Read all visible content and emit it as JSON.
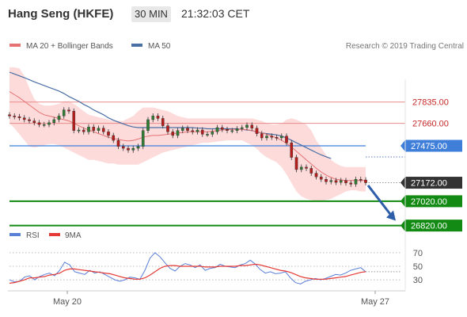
{
  "header": {
    "title": "Hang Seng (HKFE)",
    "timeframe": "30 MIN",
    "time": "21:32:03 CET"
  },
  "legend": {
    "bb_label": "MA 20 + Bollinger Bands",
    "ma50_label": "MA 50",
    "credit": "Research © 2019 Trading Central"
  },
  "colors": {
    "bb_fill": "#fdd5d5",
    "ma20": "#e57373",
    "ma50": "#4a6fa5",
    "resistance": "#e88a8a",
    "pivot": "#3f7fd9",
    "support": "#138a13",
    "current": "#333333",
    "rsi": "#5a7fd6",
    "rsi_ma": "#e53935",
    "arrow": "#2f5ea8"
  },
  "chart_data": [
    {
      "type": "candlestick",
      "title": "Hang Seng (HKFE)",
      "ylim": [
        26720,
        28230
      ],
      "x_ticks": [
        "May 20",
        "May 27"
      ],
      "levels": [
        {
          "label": "27835.00",
          "value": 27835,
          "kind": "resistance"
        },
        {
          "label": "27660.00",
          "value": 27660,
          "kind": "resistance"
        },
        {
          "label": "27475.00",
          "value": 27475,
          "kind": "pivot"
        },
        {
          "label": "27172.00",
          "value": 27172,
          "kind": "current"
        },
        {
          "label": "27020.00",
          "value": 27020,
          "kind": "support"
        },
        {
          "label": "26820.00",
          "value": 26820,
          "kind": "support"
        }
      ],
      "close": [
        27720,
        27715,
        27705,
        27690,
        27680,
        27665,
        27650,
        27650,
        27665,
        27690,
        27720,
        27770,
        27760,
        27600,
        27605,
        27590,
        27630,
        27600,
        27620,
        27590,
        27560,
        27520,
        27470,
        27455,
        27440,
        27455,
        27470,
        27600,
        27690,
        27720,
        27700,
        27640,
        27590,
        27560,
        27600,
        27620,
        27600,
        27590,
        27605,
        27570,
        27570,
        27590,
        27625,
        27610,
        27600,
        27600,
        27615,
        27625,
        27645,
        27620,
        27575,
        27540,
        27555,
        27545,
        27540,
        27555,
        27500,
        27380,
        27280,
        27300,
        27290,
        27250,
        27220,
        27200,
        27180,
        27190,
        27175,
        27190,
        27170,
        27160,
        27200,
        27195,
        27172
      ],
      "ma20": [
        27920,
        27895,
        27870,
        27840,
        27810,
        27780,
        27750,
        27730,
        27720,
        27710,
        27700,
        27690,
        27680,
        27660,
        27640,
        27620,
        27605,
        27590,
        27575,
        27560,
        27545,
        27535,
        27528,
        27520,
        27515,
        27520,
        27530,
        27545,
        27555,
        27560,
        27560,
        27565,
        27570,
        27575,
        27580,
        27585,
        27590,
        27590,
        27590,
        27590,
        27590,
        27595,
        27600,
        27605,
        27608,
        27610,
        27610,
        27610,
        27608,
        27600,
        27590,
        27580,
        27570,
        27555,
        27540,
        27520,
        27495,
        27465,
        27430,
        27395,
        27360,
        27325,
        27290,
        27260,
        27235,
        27215,
        27200,
        27195,
        27190,
        27190,
        27190,
        27190,
        27190
      ],
      "bb_upper": [
        28120,
        28120,
        28110,
        28050,
        27950,
        27860,
        27820,
        27805,
        27805,
        27810,
        27820,
        27840,
        27840,
        27820,
        27790,
        27760,
        27730,
        27720,
        27710,
        27700,
        27690,
        27680,
        27680,
        27680,
        27700,
        27720,
        27760,
        27790,
        27790,
        27790,
        27780,
        27770,
        27760,
        27740,
        27720,
        27710,
        27700,
        27700,
        27700,
        27700,
        27700,
        27700,
        27700,
        27700,
        27700,
        27700,
        27700,
        27700,
        27700,
        27700,
        27690,
        27680,
        27660,
        27650,
        27650,
        27660,
        27690,
        27700,
        27690,
        27670,
        27650,
        27600,
        27520,
        27460,
        27400,
        27360,
        27330,
        27310,
        27300,
        27300,
        27300,
        27300,
        27300
      ],
      "bb_lower": [
        27660,
        27620,
        27570,
        27520,
        27470,
        27460,
        27470,
        27480,
        27490,
        27490,
        27480,
        27460,
        27440,
        27420,
        27400,
        27380,
        27360,
        27360,
        27350,
        27340,
        27330,
        27330,
        27320,
        27320,
        27320,
        27320,
        27320,
        27340,
        27360,
        27380,
        27400,
        27420,
        27430,
        27440,
        27450,
        27460,
        27470,
        27480,
        27490,
        27500,
        27500,
        27505,
        27510,
        27515,
        27520,
        27520,
        27520,
        27520,
        27500,
        27480,
        27450,
        27410,
        27380,
        27360,
        27340,
        27300,
        27240,
        27170,
        27100,
        27060,
        27040,
        27030,
        27020,
        27020,
        27030,
        27040,
        27060,
        27080,
        27100,
        27110,
        27110,
        27100,
        27100
      ],
      "ma50": [
        28080,
        28065,
        28050,
        28035,
        28018,
        28000,
        27985,
        27970,
        27955,
        27940,
        27925,
        27905,
        27880,
        27860,
        27840,
        27815,
        27795,
        27770,
        27750,
        27730,
        27705,
        27685,
        27670,
        27655,
        27640,
        27630,
        27625,
        27625,
        27625,
        27625,
        27625,
        27625,
        27625,
        27625,
        27625,
        27625,
        27625,
        27625,
        27620,
        27620,
        27615,
        27615,
        27615,
        27615,
        27615,
        27615,
        27615,
        27610,
        27605,
        27600,
        27590,
        27580,
        27575,
        27570,
        27565,
        27555,
        27540,
        27520,
        27500,
        27480,
        27460,
        27440,
        27420,
        27400,
        27385,
        27370
      ]
    },
    {
      "type": "line",
      "title": "RSI",
      "series": [
        {
          "name": "RSI",
          "values": [
            30,
            27,
            28,
            34,
            36,
            30,
            35,
            38,
            40,
            36,
            44,
            56,
            52,
            42,
            40,
            38,
            44,
            40,
            42,
            38,
            34,
            30,
            28,
            30,
            34,
            33,
            31,
            44,
            62,
            70,
            64,
            55,
            47,
            43,
            50,
            54,
            52,
            48,
            52,
            44,
            47,
            48,
            53,
            50,
            49,
            48,
            52,
            54,
            59,
            53,
            45,
            40,
            42,
            39,
            40,
            42,
            33,
            26,
            24,
            28,
            30,
            32,
            30,
            32,
            35,
            38,
            37,
            40,
            44,
            46,
            48,
            42
          ]
        },
        {
          "name": "9MA",
          "values": [
            25,
            26,
            28,
            30,
            33,
            33,
            34,
            35,
            37,
            38,
            40,
            44,
            46,
            46,
            45,
            44,
            43,
            42,
            41,
            40,
            39,
            37,
            35,
            33,
            32,
            31,
            31,
            33,
            37,
            42,
            47,
            50,
            51,
            51,
            50,
            50,
            50,
            50,
            50,
            49,
            49,
            49,
            50,
            50,
            50,
            50,
            51,
            51,
            52,
            53,
            52,
            50,
            48,
            46,
            44,
            43,
            41,
            38,
            35,
            33,
            32,
            31,
            31,
            31,
            32,
            33,
            34,
            35,
            37,
            39,
            41,
            42
          ]
        }
      ],
      "yticks": [
        "70",
        "50",
        "30"
      ],
      "ylim": [
        15,
        85
      ]
    }
  ]
}
